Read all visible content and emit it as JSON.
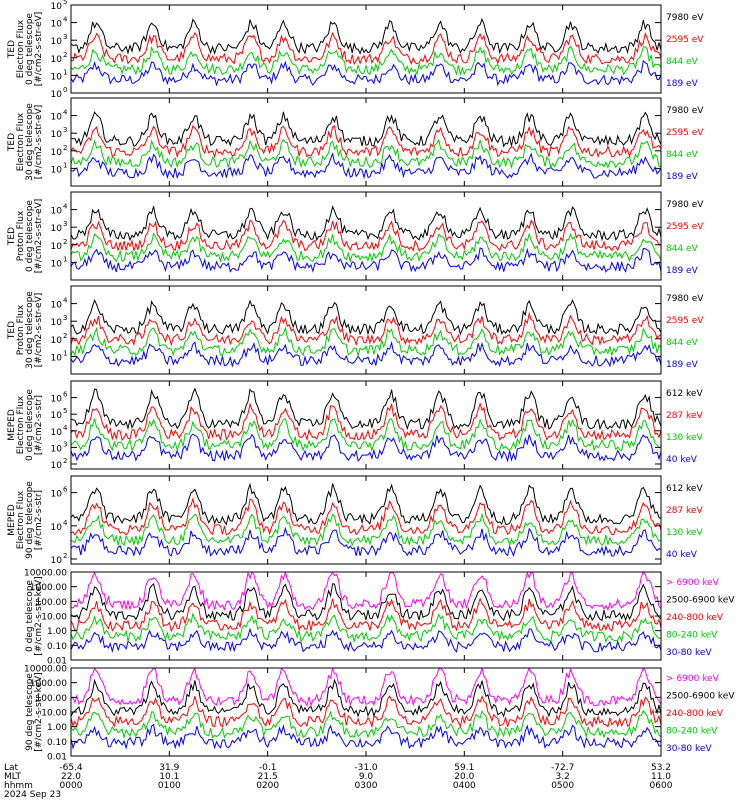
{
  "chart_data": {
    "type": "line",
    "panels": [
      {
        "ylabel": [
          "TED",
          "Electron Flux",
          "0 deg telescope",
          "[#/cm2-s-str-eV]"
        ],
        "scale": "log",
        "ylim": [
          1,
          100000
        ],
        "ticks": [
          {
            "v": 1,
            "m": "10",
            "e": "0"
          },
          {
            "v": 10,
            "m": "10",
            "e": "1"
          },
          {
            "v": 100,
            "m": "10",
            "e": "2"
          },
          {
            "v": 1000,
            "m": "10",
            "e": "3"
          },
          {
            "v": 10000,
            "m": "10",
            "e": "4"
          },
          {
            "v": 100000,
            "m": "10",
            "e": "5"
          }
        ],
        "legend": [
          {
            "label": "7980 eV",
            "color": "#000000"
          },
          {
            "label": "2595 eV",
            "color": "#ff0000"
          },
          {
            "label": "844 eV",
            "color": "#00cc00"
          },
          {
            "label": "189 eV",
            "color": "#0000ff"
          }
        ]
      },
      {
        "ylabel": [
          "TED",
          "Electron Flux",
          "30 deg telescope",
          "[#/cm2-s-str-eV]"
        ],
        "scale": "log",
        "ylim": [
          1,
          100000
        ],
        "ticks": [
          {
            "v": 10,
            "m": "10",
            "e": "1"
          },
          {
            "v": 100,
            "m": "10",
            "e": "2"
          },
          {
            "v": 1000,
            "m": "10",
            "e": "3"
          },
          {
            "v": 10000,
            "m": "10",
            "e": "4"
          }
        ],
        "legend": [
          {
            "label": "7980 eV",
            "color": "#000000"
          },
          {
            "label": "2595 eV",
            "color": "#ff0000"
          },
          {
            "label": "844 eV",
            "color": "#00cc00"
          },
          {
            "label": "189 eV",
            "color": "#0000ff"
          }
        ]
      },
      {
        "ylabel": [
          "TED",
          "Proton Flux",
          "0 deg telescope",
          "[#/cm2-s-str-eV]"
        ],
        "scale": "log",
        "ylim": [
          1,
          100000
        ],
        "ticks": [
          {
            "v": 10,
            "m": "10",
            "e": "1"
          },
          {
            "v": 100,
            "m": "10",
            "e": "2"
          },
          {
            "v": 1000,
            "m": "10",
            "e": "3"
          },
          {
            "v": 10000,
            "m": "10",
            "e": "4"
          }
        ],
        "legend": [
          {
            "label": "7980 eV",
            "color": "#000000"
          },
          {
            "label": "2595 eV",
            "color": "#ff0000"
          },
          {
            "label": "844 eV",
            "color": "#00cc00"
          },
          {
            "label": "189 eV",
            "color": "#0000ff"
          }
        ]
      },
      {
        "ylabel": [
          "TED",
          "Proton Flux",
          "30 deg telescope",
          "[#/cm2-s-str-eV]"
        ],
        "scale": "log",
        "ylim": [
          1,
          100000
        ],
        "ticks": [
          {
            "v": 10,
            "m": "10",
            "e": "1"
          },
          {
            "v": 100,
            "m": "10",
            "e": "2"
          },
          {
            "v": 1000,
            "m": "10",
            "e": "3"
          },
          {
            "v": 10000,
            "m": "10",
            "e": "4"
          }
        ],
        "legend": [
          {
            "label": "7980 eV",
            "color": "#000000"
          },
          {
            "label": "2595 eV",
            "color": "#ff0000"
          },
          {
            "label": "844 eV",
            "color": "#00cc00"
          },
          {
            "label": "189 eV",
            "color": "#0000ff"
          }
        ]
      },
      {
        "ylabel": [
          "MEPED",
          "Electron Flux",
          "0 deg telescope",
          "[#/cm2-s-str]"
        ],
        "scale": "log",
        "ylim": [
          50,
          10000000
        ],
        "ticks": [
          {
            "v": 100,
            "m": "10",
            "e": "2"
          },
          {
            "v": 1000,
            "m": "10",
            "e": "3"
          },
          {
            "v": 10000,
            "m": "10",
            "e": "4"
          },
          {
            "v": 100000,
            "m": "10",
            "e": "5"
          },
          {
            "v": 1000000,
            "m": "10",
            "e": "6"
          }
        ],
        "legend": [
          {
            "label": "612 keV",
            "color": "#000000"
          },
          {
            "label": "287 keV",
            "color": "#ff0000"
          },
          {
            "label": "130 keV",
            "color": "#00cc00"
          },
          {
            "label": "40 keV",
            "color": "#0000ff"
          }
        ]
      },
      {
        "ylabel": [
          "MEPED",
          "Electron Flux",
          "90 deg telescope",
          "[#/cm2-s-str]"
        ],
        "scale": "log",
        "ylim": [
          50,
          10000000
        ],
        "ticks": [
          {
            "v": 100,
            "m": "10",
            "e": "2"
          },
          {
            "v": 10000,
            "m": "10",
            "e": "4"
          },
          {
            "v": 1000000,
            "m": "10",
            "e": "6"
          }
        ],
        "legend": [
          {
            "label": "612 keV",
            "color": "#000000"
          },
          {
            "label": "287 keV",
            "color": "#ff0000"
          },
          {
            "label": "130 keV",
            "color": "#00cc00"
          },
          {
            "label": "40 keV",
            "color": "#0000ff"
          }
        ]
      },
      {
        "ylabel": [
          "0 deg telescope",
          "[#/cm2-s-str-keV]"
        ],
        "scale": "log",
        "ylim": [
          0.01,
          10000
        ],
        "ticks": [
          {
            "v": 0.01,
            "t": "0.01"
          },
          {
            "v": 0.1,
            "t": "0.10"
          },
          {
            "v": 1,
            "t": "1.00"
          },
          {
            "v": 10,
            "t": "10.00"
          },
          {
            "v": 100,
            "t": "100.00"
          },
          {
            "v": 1000,
            "t": "1000.00"
          },
          {
            "v": 10000,
            "t": "10000.00"
          }
        ],
        "legend": [
          {
            "label": "> 6900 keV",
            "color": "#ff00ff"
          },
          {
            "label": "2500-6900 keV",
            "color": "#000000"
          },
          {
            "label": "240-800 keV",
            "color": "#ff0000"
          },
          {
            "label": "80-240 keV",
            "color": "#00cc00"
          },
          {
            "label": "30-80 keV",
            "color": "#0000ff"
          }
        ]
      },
      {
        "ylabel": [
          "90 deg telescope",
          "[#/cm2-s-str-keV]"
        ],
        "scale": "log",
        "ylim": [
          0.01,
          10000
        ],
        "ticks": [
          {
            "v": 0.01,
            "t": "0.01"
          },
          {
            "v": 0.1,
            "t": "0.10"
          },
          {
            "v": 1,
            "t": "1.00"
          },
          {
            "v": 10,
            "t": "10.00"
          },
          {
            "v": 100,
            "t": "100.00"
          },
          {
            "v": 1000,
            "t": "1000.00"
          },
          {
            "v": 10000,
            "t": "10000.00"
          }
        ],
        "legend": [
          {
            "label": "> 6900 keV",
            "color": "#ff00ff"
          },
          {
            "label": "2500-6900 keV",
            "color": "#000000"
          },
          {
            "label": "240-800 keV",
            "color": "#ff0000"
          },
          {
            "label": "80-240 keV",
            "color": "#00cc00"
          },
          {
            "label": "30-80 keV",
            "color": "#0000ff"
          }
        ]
      }
    ],
    "x_axis": {
      "row_labels": [
        "Lat",
        "MLT",
        "hhmm",
        "2024 Sep 23"
      ],
      "xlim": [
        0,
        360
      ],
      "ticks": [
        {
          "x": 0,
          "lat": "-65.4",
          "mlt": "22.0",
          "hhmm": "0000"
        },
        {
          "x": 60,
          "lat": "31.9",
          "mlt": "10.1",
          "hhmm": "0100"
        },
        {
          "x": 120,
          "lat": "-0.1",
          "mlt": "21.5",
          "hhmm": "0200"
        },
        {
          "x": 180,
          "lat": "-31.0",
          "mlt": "9.0",
          "hhmm": "0300"
        },
        {
          "x": 240,
          "lat": "59.1",
          "mlt": "20.0",
          "hhmm": "0400"
        },
        {
          "x": 300,
          "lat": "-72.7",
          "mlt": "3.2",
          "hhmm": "0500"
        },
        {
          "x": 360,
          "lat": "53.2",
          "mlt": "11.0",
          "hhmm": "0600"
        }
      ]
    }
  }
}
